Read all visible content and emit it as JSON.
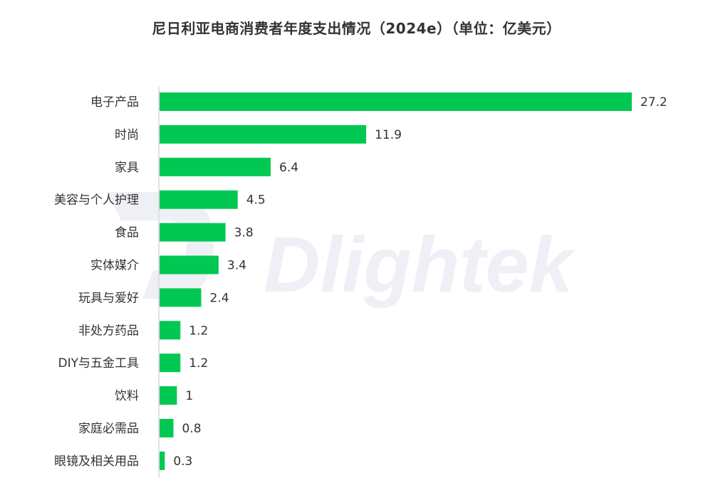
{
  "chart_data": {
    "type": "bar",
    "orientation": "horizontal",
    "title": "尼日利亚电商消费者年度支出情况（2024e）（单位：亿美元）",
    "categories": [
      "电子产品",
      "时尚",
      "家具",
      "美容与个人护理",
      "食品",
      "实体媒介",
      "玩具与爱好",
      "非处方药品",
      "DIY与五金工具",
      "饮料",
      "家庭必需品",
      "眼镜及相关用品"
    ],
    "values": [
      27.2,
      11.9,
      6.4,
      4.5,
      3.8,
      3.4,
      2.4,
      1.2,
      1.2,
      1,
      0.8,
      0.3
    ],
    "value_labels": [
      "27.2",
      "11.9",
      "6.4",
      "4.5",
      "3.8",
      "3.4",
      "2.4",
      "1.2",
      "1.2",
      "1",
      "0.8",
      "0.3"
    ],
    "xlim": [
      0,
      27.2
    ],
    "grid": false,
    "bar_color": "#00c853"
  },
  "watermark": {
    "text": "Dlightek",
    "color": "#eef0f6"
  }
}
